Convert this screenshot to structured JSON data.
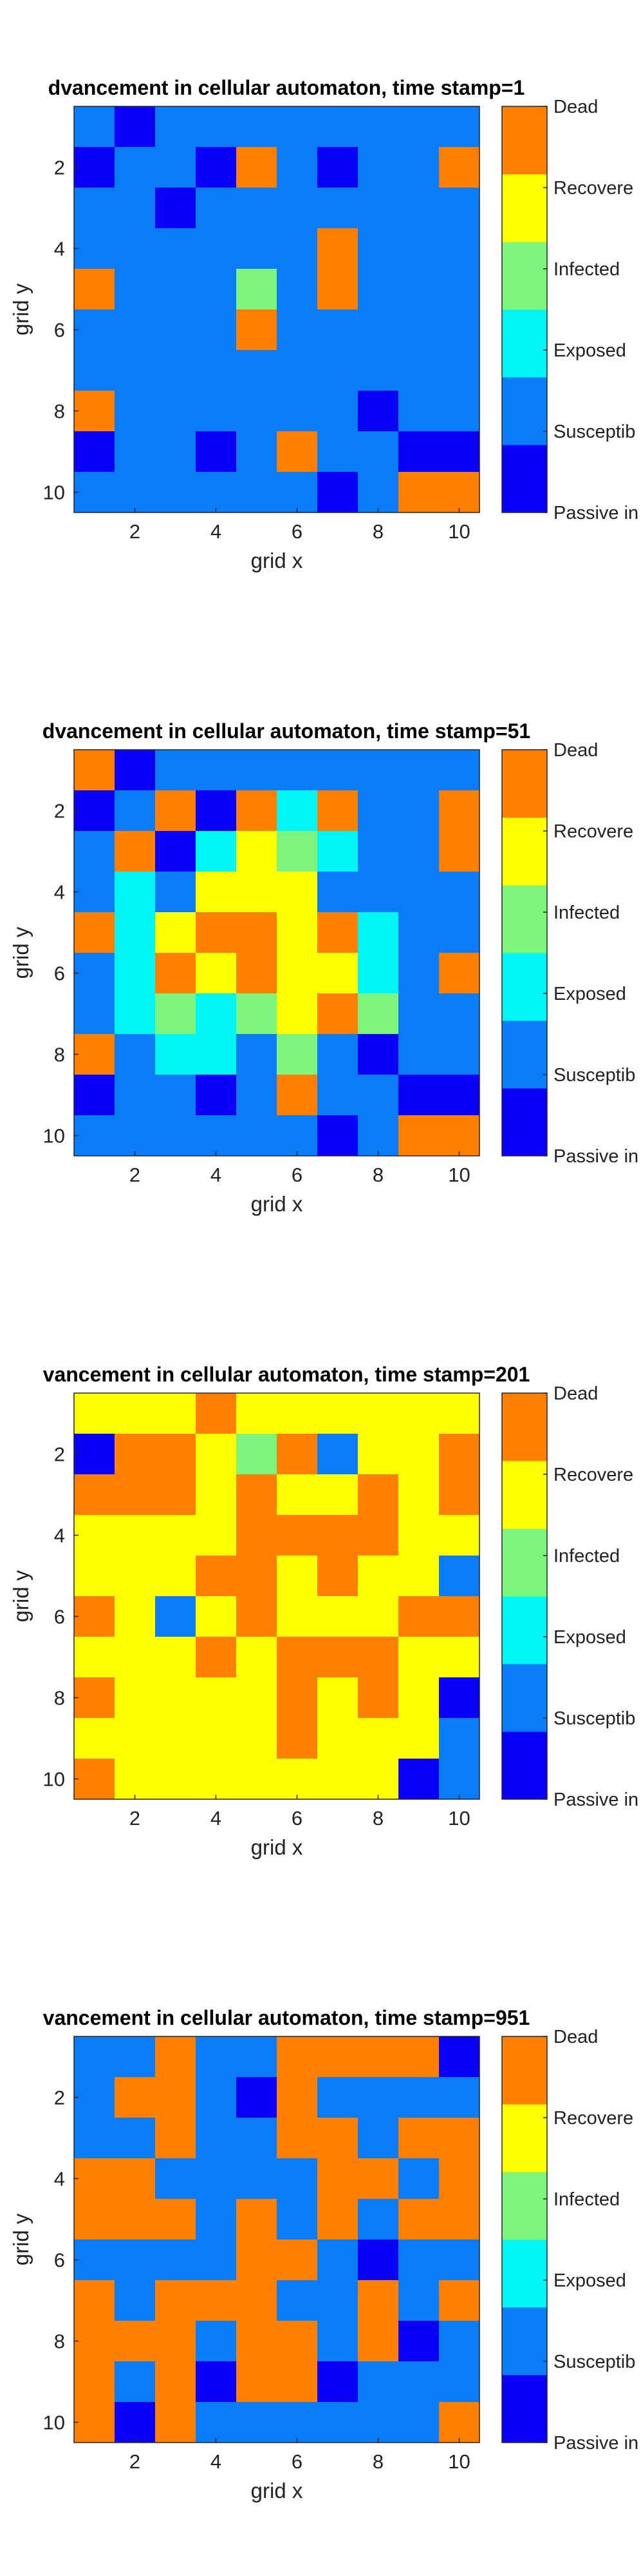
{
  "colors": {
    "0": "#0a00f5",
    "1": "#0a7cf7",
    "2": "#00f5f5",
    "3": "#7df57d",
    "4": "#ffff00",
    "5": "#ff7f00"
  },
  "colorbar": {
    "labels": [
      "Passive in",
      "Susceptib",
      "Exposed",
      "Infected",
      "Recovere",
      "Dead"
    ]
  },
  "chart_data": [
    {
      "type": "heatmap",
      "title": "dvancement in cellular automaton, time stamp=1",
      "xlabel": "grid x",
      "ylabel": "grid y",
      "xticks": [
        "2",
        "4",
        "6",
        "8",
        "10"
      ],
      "yticks": [
        "2",
        "4",
        "6",
        "8",
        "10"
      ],
      "xlim": [
        0.5,
        10.5
      ],
      "ylim": [
        0.5,
        10.5
      ],
      "value_legend": {
        "0": "Passive",
        "1": "Susceptible",
        "2": "Exposed",
        "3": "Infected",
        "4": "Recovered",
        "5": "Dead"
      },
      "grid": [
        [
          1,
          0,
          1,
          1,
          1,
          1,
          1,
          1,
          1,
          1
        ],
        [
          0,
          1,
          1,
          0,
          5,
          1,
          0,
          1,
          1,
          5
        ],
        [
          1,
          1,
          0,
          1,
          1,
          1,
          1,
          1,
          1,
          1
        ],
        [
          1,
          1,
          1,
          1,
          1,
          1,
          5,
          1,
          1,
          1
        ],
        [
          5,
          1,
          1,
          1,
          3,
          1,
          5,
          1,
          1,
          1
        ],
        [
          1,
          1,
          1,
          1,
          5,
          1,
          1,
          1,
          1,
          1
        ],
        [
          1,
          1,
          1,
          1,
          1,
          1,
          1,
          1,
          1,
          1
        ],
        [
          5,
          1,
          1,
          1,
          1,
          1,
          1,
          0,
          1,
          1
        ],
        [
          0,
          1,
          1,
          0,
          1,
          5,
          1,
          1,
          0,
          0
        ],
        [
          1,
          1,
          1,
          1,
          1,
          1,
          0,
          1,
          5,
          5
        ]
      ]
    },
    {
      "type": "heatmap",
      "title": "dvancement in cellular automaton, time stamp=51",
      "xlabel": "grid x",
      "ylabel": "grid y",
      "xticks": [
        "2",
        "4",
        "6",
        "8",
        "10"
      ],
      "yticks": [
        "2",
        "4",
        "6",
        "8",
        "10"
      ],
      "xlim": [
        0.5,
        10.5
      ],
      "ylim": [
        0.5,
        10.5
      ],
      "value_legend": {
        "0": "Passive",
        "1": "Susceptible",
        "2": "Exposed",
        "3": "Infected",
        "4": "Recovered",
        "5": "Dead"
      },
      "grid": [
        [
          5,
          0,
          1,
          1,
          1,
          1,
          1,
          1,
          1,
          1
        ],
        [
          0,
          1,
          5,
          0,
          5,
          2,
          5,
          1,
          1,
          5
        ],
        [
          1,
          5,
          0,
          2,
          4,
          3,
          2,
          1,
          1,
          5
        ],
        [
          1,
          2,
          1,
          4,
          4,
          4,
          1,
          1,
          1,
          1
        ],
        [
          5,
          2,
          4,
          5,
          5,
          4,
          5,
          2,
          1,
          1
        ],
        [
          1,
          2,
          5,
          4,
          5,
          4,
          4,
          2,
          1,
          5
        ],
        [
          1,
          2,
          3,
          2,
          3,
          4,
          5,
          3,
          1,
          1
        ],
        [
          5,
          1,
          2,
          2,
          1,
          3,
          1,
          0,
          1,
          1
        ],
        [
          0,
          1,
          1,
          0,
          1,
          5,
          1,
          1,
          0,
          0
        ],
        [
          1,
          1,
          1,
          1,
          1,
          1,
          0,
          1,
          5,
          5
        ]
      ]
    },
    {
      "type": "heatmap",
      "title": "vancement in cellular automaton, time stamp=201",
      "xlabel": "grid x",
      "ylabel": "grid y",
      "xticks": [
        "2",
        "4",
        "6",
        "8",
        "10"
      ],
      "yticks": [
        "2",
        "4",
        "6",
        "8",
        "10"
      ],
      "xlim": [
        0.5,
        10.5
      ],
      "ylim": [
        0.5,
        10.5
      ],
      "value_legend": {
        "0": "Passive",
        "1": "Susceptible",
        "2": "Exposed",
        "3": "Infected",
        "4": "Recovered",
        "5": "Dead"
      },
      "grid": [
        [
          4,
          4,
          4,
          5,
          4,
          4,
          4,
          4,
          4,
          4
        ],
        [
          0,
          5,
          5,
          4,
          3,
          5,
          1,
          4,
          4,
          5
        ],
        [
          5,
          5,
          5,
          4,
          5,
          4,
          4,
          5,
          4,
          5
        ],
        [
          4,
          4,
          4,
          4,
          5,
          5,
          5,
          5,
          4,
          4
        ],
        [
          4,
          4,
          4,
          5,
          5,
          4,
          5,
          4,
          4,
          1
        ],
        [
          5,
          4,
          1,
          4,
          5,
          4,
          4,
          4,
          5,
          5
        ],
        [
          4,
          4,
          4,
          5,
          4,
          5,
          5,
          5,
          4,
          4
        ],
        [
          5,
          4,
          4,
          4,
          4,
          5,
          4,
          5,
          4,
          0
        ],
        [
          4,
          4,
          4,
          4,
          4,
          5,
          4,
          4,
          4,
          1
        ],
        [
          5,
          4,
          4,
          4,
          4,
          4,
          4,
          4,
          0,
          1
        ]
      ]
    },
    {
      "type": "heatmap",
      "title": "vancement in cellular automaton, time stamp=951",
      "xlabel": "grid x",
      "ylabel": "grid y",
      "xticks": [
        "2",
        "4",
        "6",
        "8",
        "10"
      ],
      "yticks": [
        "2",
        "4",
        "6",
        "8",
        "10"
      ],
      "xlim": [
        0.5,
        10.5
      ],
      "ylim": [
        0.5,
        10.5
      ],
      "value_legend": {
        "0": "Passive",
        "1": "Susceptible",
        "2": "Exposed",
        "3": "Infected",
        "4": "Recovered",
        "5": "Dead"
      },
      "grid": [
        [
          1,
          1,
          5,
          1,
          1,
          5,
          5,
          5,
          5,
          0
        ],
        [
          1,
          5,
          5,
          1,
          0,
          5,
          1,
          1,
          1,
          1
        ],
        [
          1,
          1,
          5,
          1,
          1,
          5,
          5,
          1,
          5,
          5
        ],
        [
          5,
          5,
          1,
          1,
          1,
          1,
          5,
          5,
          1,
          5
        ],
        [
          5,
          5,
          5,
          1,
          5,
          1,
          5,
          1,
          5,
          5
        ],
        [
          1,
          1,
          1,
          1,
          5,
          5,
          1,
          0,
          1,
          1
        ],
        [
          5,
          1,
          5,
          5,
          5,
          1,
          1,
          5,
          1,
          5
        ],
        [
          5,
          5,
          5,
          1,
          5,
          5,
          1,
          5,
          0,
          1
        ],
        [
          5,
          1,
          5,
          0,
          5,
          5,
          0,
          1,
          1,
          1
        ],
        [
          5,
          0,
          5,
          1,
          1,
          1,
          1,
          1,
          1,
          5
        ]
      ]
    }
  ]
}
